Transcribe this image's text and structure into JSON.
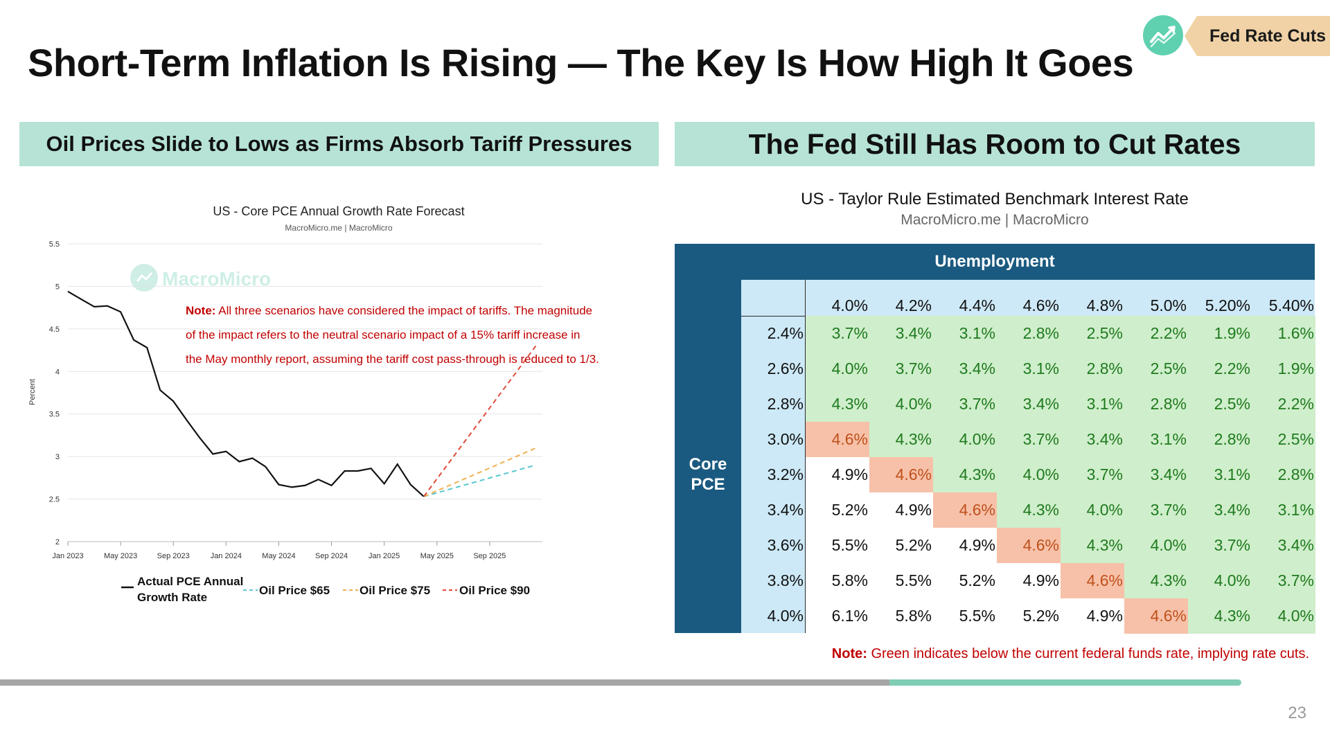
{
  "slide": {
    "title": "Short-Term Inflation Is Rising — The Key Is How High It Goes",
    "badge": "Fed Rate Cuts",
    "badge_icon": "chart-trend-icon",
    "page_number": "23",
    "colors": {
      "panel_header": "#b6e3d6",
      "badge": "#f0d2a6",
      "badge_icon": "#5fd0b0",
      "table_navy": "#1b5a80",
      "table_light_blue": "#cde9f7",
      "green_cell": "#cfeecb",
      "green_text": "#1e7a1e",
      "orange_cell": "#f6c1a8",
      "orange_text": "#c0501c",
      "note_red": "#c00000"
    }
  },
  "left_panel": {
    "header": "Oil Prices Slide to Lows as Firms Absorb Tariff Pressures"
  },
  "right_panel": {
    "header": "The Fed Still Has Room to Cut Rates"
  },
  "chart_data": {
    "type": "line",
    "title": "US - Core PCE Annual Growth Rate Forecast",
    "subtitle": "MacroMicro.me | MacroMicro",
    "watermark": "MacroMicro",
    "ylabel": "Percent",
    "xlabel": "",
    "ylim": [
      2,
      5.5
    ],
    "yticks": [
      "2",
      "2.5",
      "3",
      "3.5",
      "4",
      "4.5",
      "5",
      "5.5"
    ],
    "xticks": [
      "Jan 2023",
      "May 2023",
      "Sep 2023",
      "Jan 2024",
      "May 2024",
      "Sep 2024",
      "Jan 2025",
      "May 2025",
      "Sep 2025"
    ],
    "x_range_months": [
      0,
      36
    ],
    "annotation": {
      "bold": "Note:",
      "lines": [
        " All three scenarios have considered the impact of tariffs. The magnitude",
        "of the impact refers to the neutral scenario impact of a 15% tariff increase in",
        "the May monthly report, assuming the tariff cost pass-through is reduced to 1/3."
      ]
    },
    "series": [
      {
        "name": "Actual PCE Annual Growth Rate",
        "legend_lines": [
          "Actual PCE Annual",
          "Growth Rate"
        ],
        "style": "solid",
        "color": "#111111",
        "x": [
          0,
          1,
          2,
          3,
          4,
          5,
          6,
          7,
          8,
          9,
          10,
          11,
          12,
          13,
          14,
          15,
          16,
          17,
          18,
          19,
          20,
          21,
          22,
          23,
          24,
          25,
          26,
          27
        ],
        "values": [
          4.94,
          4.85,
          4.76,
          4.77,
          4.7,
          4.37,
          4.28,
          3.78,
          3.65,
          3.43,
          3.22,
          3.03,
          3.06,
          2.94,
          2.98,
          2.88,
          2.67,
          2.64,
          2.66,
          2.73,
          2.66,
          2.83,
          2.83,
          2.86,
          2.68,
          2.91,
          2.67,
          2.53
        ]
      },
      {
        "name": "Oil Price $65",
        "style": "dashed",
        "color": "#5bc8d0",
        "x": [
          27,
          35.5
        ],
        "values": [
          2.53,
          2.9
        ]
      },
      {
        "name": "Oil Price $75",
        "style": "dashed",
        "color": "#f0b050",
        "x": [
          27,
          35.5
        ],
        "values": [
          2.53,
          3.1
        ]
      },
      {
        "name": "Oil Price $90",
        "style": "dashed",
        "color": "#e04a3a",
        "x": [
          27,
          35.5
        ],
        "values": [
          2.53,
          4.3
        ]
      }
    ]
  },
  "rate_table": {
    "title": "US - Taylor Rule Estimated Benchmark Interest Rate",
    "subtitle": "MacroMicro.me | MacroMicro",
    "col_axis_label": "Unemployment",
    "row_axis_label": [
      "Core",
      "PCE"
    ],
    "columns": [
      "4.0%",
      "4.2%",
      "4.4%",
      "4.6%",
      "4.8%",
      "5.0%",
      "5.20%",
      "5.40%"
    ],
    "rows": [
      {
        "label": "2.4%",
        "values": [
          "3.7%",
          "3.4%",
          "3.1%",
          "2.8%",
          "2.5%",
          "2.2%",
          "1.9%",
          "1.6%"
        ],
        "status": [
          "g",
          "g",
          "g",
          "g",
          "g",
          "g",
          "g",
          "g"
        ]
      },
      {
        "label": "2.6%",
        "values": [
          "4.0%",
          "3.7%",
          "3.4%",
          "3.1%",
          "2.8%",
          "2.5%",
          "2.2%",
          "1.9%"
        ],
        "status": [
          "g",
          "g",
          "g",
          "g",
          "g",
          "g",
          "g",
          "g"
        ]
      },
      {
        "label": "2.8%",
        "values": [
          "4.3%",
          "4.0%",
          "3.7%",
          "3.4%",
          "3.1%",
          "2.8%",
          "2.5%",
          "2.2%"
        ],
        "status": [
          "g",
          "g",
          "g",
          "g",
          "g",
          "g",
          "g",
          "g"
        ]
      },
      {
        "label": "3.0%",
        "values": [
          "4.6%",
          "4.3%",
          "4.0%",
          "3.7%",
          "3.4%",
          "3.1%",
          "2.8%",
          "2.5%"
        ],
        "status": [
          "o",
          "g",
          "g",
          "g",
          "g",
          "g",
          "g",
          "g"
        ]
      },
      {
        "label": "3.2%",
        "values": [
          "4.9%",
          "4.6%",
          "4.3%",
          "4.0%",
          "3.7%",
          "3.4%",
          "3.1%",
          "2.8%"
        ],
        "status": [
          "w",
          "o",
          "g",
          "g",
          "g",
          "g",
          "g",
          "g"
        ]
      },
      {
        "label": "3.4%",
        "values": [
          "5.2%",
          "4.9%",
          "4.6%",
          "4.3%",
          "4.0%",
          "3.7%",
          "3.4%",
          "3.1%"
        ],
        "status": [
          "w",
          "w",
          "o",
          "g",
          "g",
          "g",
          "g",
          "g"
        ]
      },
      {
        "label": "3.6%",
        "values": [
          "5.5%",
          "5.2%",
          "4.9%",
          "4.6%",
          "4.3%",
          "4.0%",
          "3.7%",
          "3.4%"
        ],
        "status": [
          "w",
          "w",
          "w",
          "o",
          "g",
          "g",
          "g",
          "g"
        ]
      },
      {
        "label": "3.8%",
        "values": [
          "5.8%",
          "5.5%",
          "5.2%",
          "4.9%",
          "4.6%",
          "4.3%",
          "4.0%",
          "3.7%"
        ],
        "status": [
          "w",
          "w",
          "w",
          "w",
          "o",
          "g",
          "g",
          "g"
        ]
      },
      {
        "label": "4.0%",
        "values": [
          "6.1%",
          "5.8%",
          "5.5%",
          "5.2%",
          "4.9%",
          "4.6%",
          "4.3%",
          "4.0%"
        ],
        "status": [
          "w",
          "w",
          "w",
          "w",
          "w",
          "o",
          "g",
          "g"
        ]
      }
    ],
    "note_bold": "Note:",
    "note_text": " Green indicates below the current federal funds rate, implying rate cuts."
  }
}
